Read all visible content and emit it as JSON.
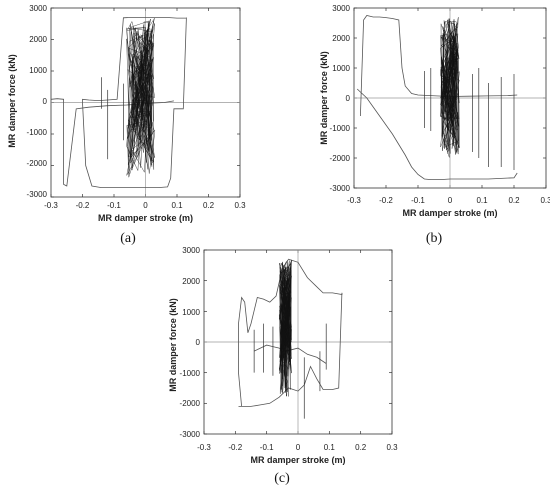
{
  "chart_data": [
    {
      "type": "line",
      "panel_label": "(a)",
      "xlabel": "MR damper stroke (m)",
      "ylabel": "MR damper force (kN)",
      "xlim": [
        -0.3,
        0.3
      ],
      "ylim": [
        -3000,
        3000
      ],
      "xticks": [
        "-0.3",
        "-0.2",
        "-0.1",
        "0",
        "0.1",
        "0.2",
        "0.3"
      ],
      "yticks": [
        "3000",
        "2000",
        "1000",
        "0",
        "-1000",
        "-2000",
        "-3000"
      ],
      "grid": false,
      "reference_lines": {
        "x": 0,
        "y": 0
      },
      "series": [
        {
          "color": "#555555",
          "x": [
            0.13,
            0.13,
            0.1,
            0.07,
            0.03,
            -0.02,
            -0.05,
            -0.07,
            -0.09,
            -0.12,
            -0.15,
            -0.18,
            -0.2,
            -0.2,
            -0.19,
            -0.17,
            -0.14,
            -0.1,
            -0.05,
            0.0,
            0.04,
            0.07,
            0.08,
            0.09,
            0.12,
            0.13
          ],
          "y": [
            2700,
            2680,
            2680,
            2700,
            2700,
            2700,
            2700,
            2690,
            100,
            80,
            60,
            80,
            100,
            0,
            -2000,
            -2650,
            -2700,
            -2700,
            -2700,
            -2700,
            -2700,
            -2680,
            -2400,
            -200,
            -200,
            2700
          ]
        },
        {
          "color": "#555555",
          "x": [
            -0.32,
            -0.31,
            -0.3,
            -0.28,
            -0.26,
            -0.26,
            -0.25,
            -0.22,
            -0.18,
            -0.12,
            -0.06,
            -0.02,
            0.02,
            0.06,
            0.09
          ],
          "y": [
            100,
            80,
            100,
            120,
            100,
            -2600,
            -2650,
            -200,
            -150,
            -100,
            -80,
            -50,
            -20,
            0,
            50
          ]
        }
      ],
      "dense_cluster": {
        "x_range": [
          -0.06,
          0.03
        ],
        "y_range": [
          -2400,
          2700
        ]
      },
      "spikes": [
        {
          "x": -0.14,
          "y": [
            -200,
            800
          ]
        },
        {
          "x": -0.12,
          "y": [
            -1800,
            400
          ]
        },
        {
          "x": -0.07,
          "y": [
            -1200,
            600
          ]
        },
        {
          "x": 0.01,
          "y": [
            -1500,
            500
          ]
        }
      ]
    },
    {
      "type": "line",
      "panel_label": "(b)",
      "xlabel": "MR damper stroke (m)",
      "ylabel": "MR damper force (kN)",
      "xlim": [
        -0.3,
        0.3
      ],
      "ylim": [
        -3000,
        3000
      ],
      "xticks": [
        "-0.3",
        "-0.2",
        "-0.1",
        "0",
        "0.1",
        "0.2",
        "0.3"
      ],
      "yticks": [
        "3000",
        "2000",
        "1000",
        "0",
        "-1000",
        "-2000",
        "-3000"
      ],
      "grid": false,
      "reference_lines": {
        "x": 0,
        "y": 0
      },
      "series": [
        {
          "color": "#555555",
          "x": [
            -0.28,
            -0.27,
            -0.26,
            -0.24,
            -0.22,
            -0.2,
            -0.18,
            -0.16,
            -0.15,
            -0.14,
            -0.12,
            -0.1,
            -0.06,
            0.0,
            0.06,
            0.12,
            0.18,
            0.21
          ],
          "y": [
            -600,
            2600,
            2750,
            2700,
            2700,
            2680,
            2650,
            2600,
            1000,
            400,
            150,
            100,
            80,
            50,
            60,
            70,
            80,
            100
          ]
        },
        {
          "color": "#555555",
          "x": [
            -0.29,
            -0.28,
            -0.26,
            -0.24,
            -0.22,
            -0.2,
            -0.18,
            -0.16,
            -0.14,
            -0.12,
            -0.1,
            -0.08,
            -0.06,
            -0.03,
            0.0,
            0.04,
            0.08,
            0.12,
            0.16,
            0.2,
            0.21
          ],
          "y": [
            300,
            200,
            0,
            -300,
            -600,
            -900,
            -1200,
            -1550,
            -1900,
            -2300,
            -2550,
            -2700,
            -2720,
            -2720,
            -2700,
            -2700,
            -2700,
            -2700,
            -2680,
            -2660,
            -2500
          ]
        }
      ],
      "dense_cluster": {
        "x_range": [
          -0.03,
          0.03
        ],
        "y_range": [
          -2000,
          2700
        ]
      },
      "spikes": [
        {
          "x": -0.08,
          "y": [
            -1000,
            900
          ]
        },
        {
          "x": -0.06,
          "y": [
            -1100,
            1000
          ]
        },
        {
          "x": 0.07,
          "y": [
            -1800,
            800
          ]
        },
        {
          "x": 0.09,
          "y": [
            -2000,
            1000
          ]
        },
        {
          "x": 0.12,
          "y": [
            -2300,
            500
          ]
        },
        {
          "x": 0.16,
          "y": [
            -2300,
            700
          ]
        },
        {
          "x": 0.2,
          "y": [
            -2400,
            800
          ]
        }
      ]
    },
    {
      "type": "line",
      "panel_label": "(c)",
      "xlabel": "MR damper stroke (m)",
      "ylabel": "MR damper force (kN)",
      "xlim": [
        -0.3,
        0.3
      ],
      "ylim": [
        -3000,
        3000
      ],
      "xticks": [
        "-0.3",
        "-0.2",
        "-0.1",
        "0",
        "0.1",
        "0.2",
        "0.3"
      ],
      "yticks": [
        "3000",
        "2000",
        "1000",
        "0",
        "-1000",
        "-2000",
        "-3000"
      ],
      "grid": false,
      "reference_lines": {
        "x": 0,
        "y": 0
      },
      "series": [
        {
          "color": "#555555",
          "x": [
            -0.18,
            -0.19,
            -0.19,
            -0.18,
            -0.17,
            -0.16,
            -0.15,
            -0.13,
            -0.11,
            -0.09,
            -0.07,
            -0.05,
            -0.03,
            0.0,
            0.03,
            0.06,
            0.08,
            0.11,
            0.14,
            0.14
          ],
          "y": [
            -2100,
            -1000,
            600,
            1450,
            1300,
            300,
            600,
            1450,
            1400,
            1300,
            1500,
            2400,
            2700,
            2600,
            2100,
            1800,
            1600,
            1600,
            1550,
            1600
          ]
        },
        {
          "color": "#555555",
          "x": [
            0.14,
            0.13,
            0.11,
            0.08,
            0.06,
            0.04,
            0.02,
            0.0,
            -0.03,
            -0.06,
            -0.09,
            -0.12,
            -0.15,
            -0.18,
            -0.19
          ],
          "y": [
            1600,
            -1500,
            -1550,
            -1550,
            -1200,
            -800,
            -1400,
            -1600,
            -1500,
            -1800,
            -2000,
            -2050,
            -2100,
            -2100,
            -2100
          ]
        },
        {
          "color": "#555555",
          "x": [
            -0.14,
            -0.12,
            -0.1,
            -0.08,
            -0.06,
            -0.04,
            -0.02,
            0.0,
            0.03,
            0.06,
            0.09
          ],
          "y": [
            -300,
            -200,
            -100,
            -150,
            -200,
            -300,
            -250,
            -200,
            -400,
            -500,
            -700
          ]
        }
      ],
      "dense_cluster": {
        "x_range": [
          -0.06,
          -0.02
        ],
        "y_range": [
          -1800,
          2700
        ]
      },
      "spikes": [
        {
          "x": -0.14,
          "y": [
            -1000,
            400
          ]
        },
        {
          "x": -0.11,
          "y": [
            -1000,
            600
          ]
        },
        {
          "x": -0.08,
          "y": [
            -1100,
            500
          ]
        },
        {
          "x": 0.02,
          "y": [
            -2500,
            -500
          ]
        },
        {
          "x": 0.07,
          "y": [
            -1600,
            -300
          ]
        },
        {
          "x": 0.09,
          "y": [
            -900,
            600
          ]
        }
      ]
    }
  ]
}
